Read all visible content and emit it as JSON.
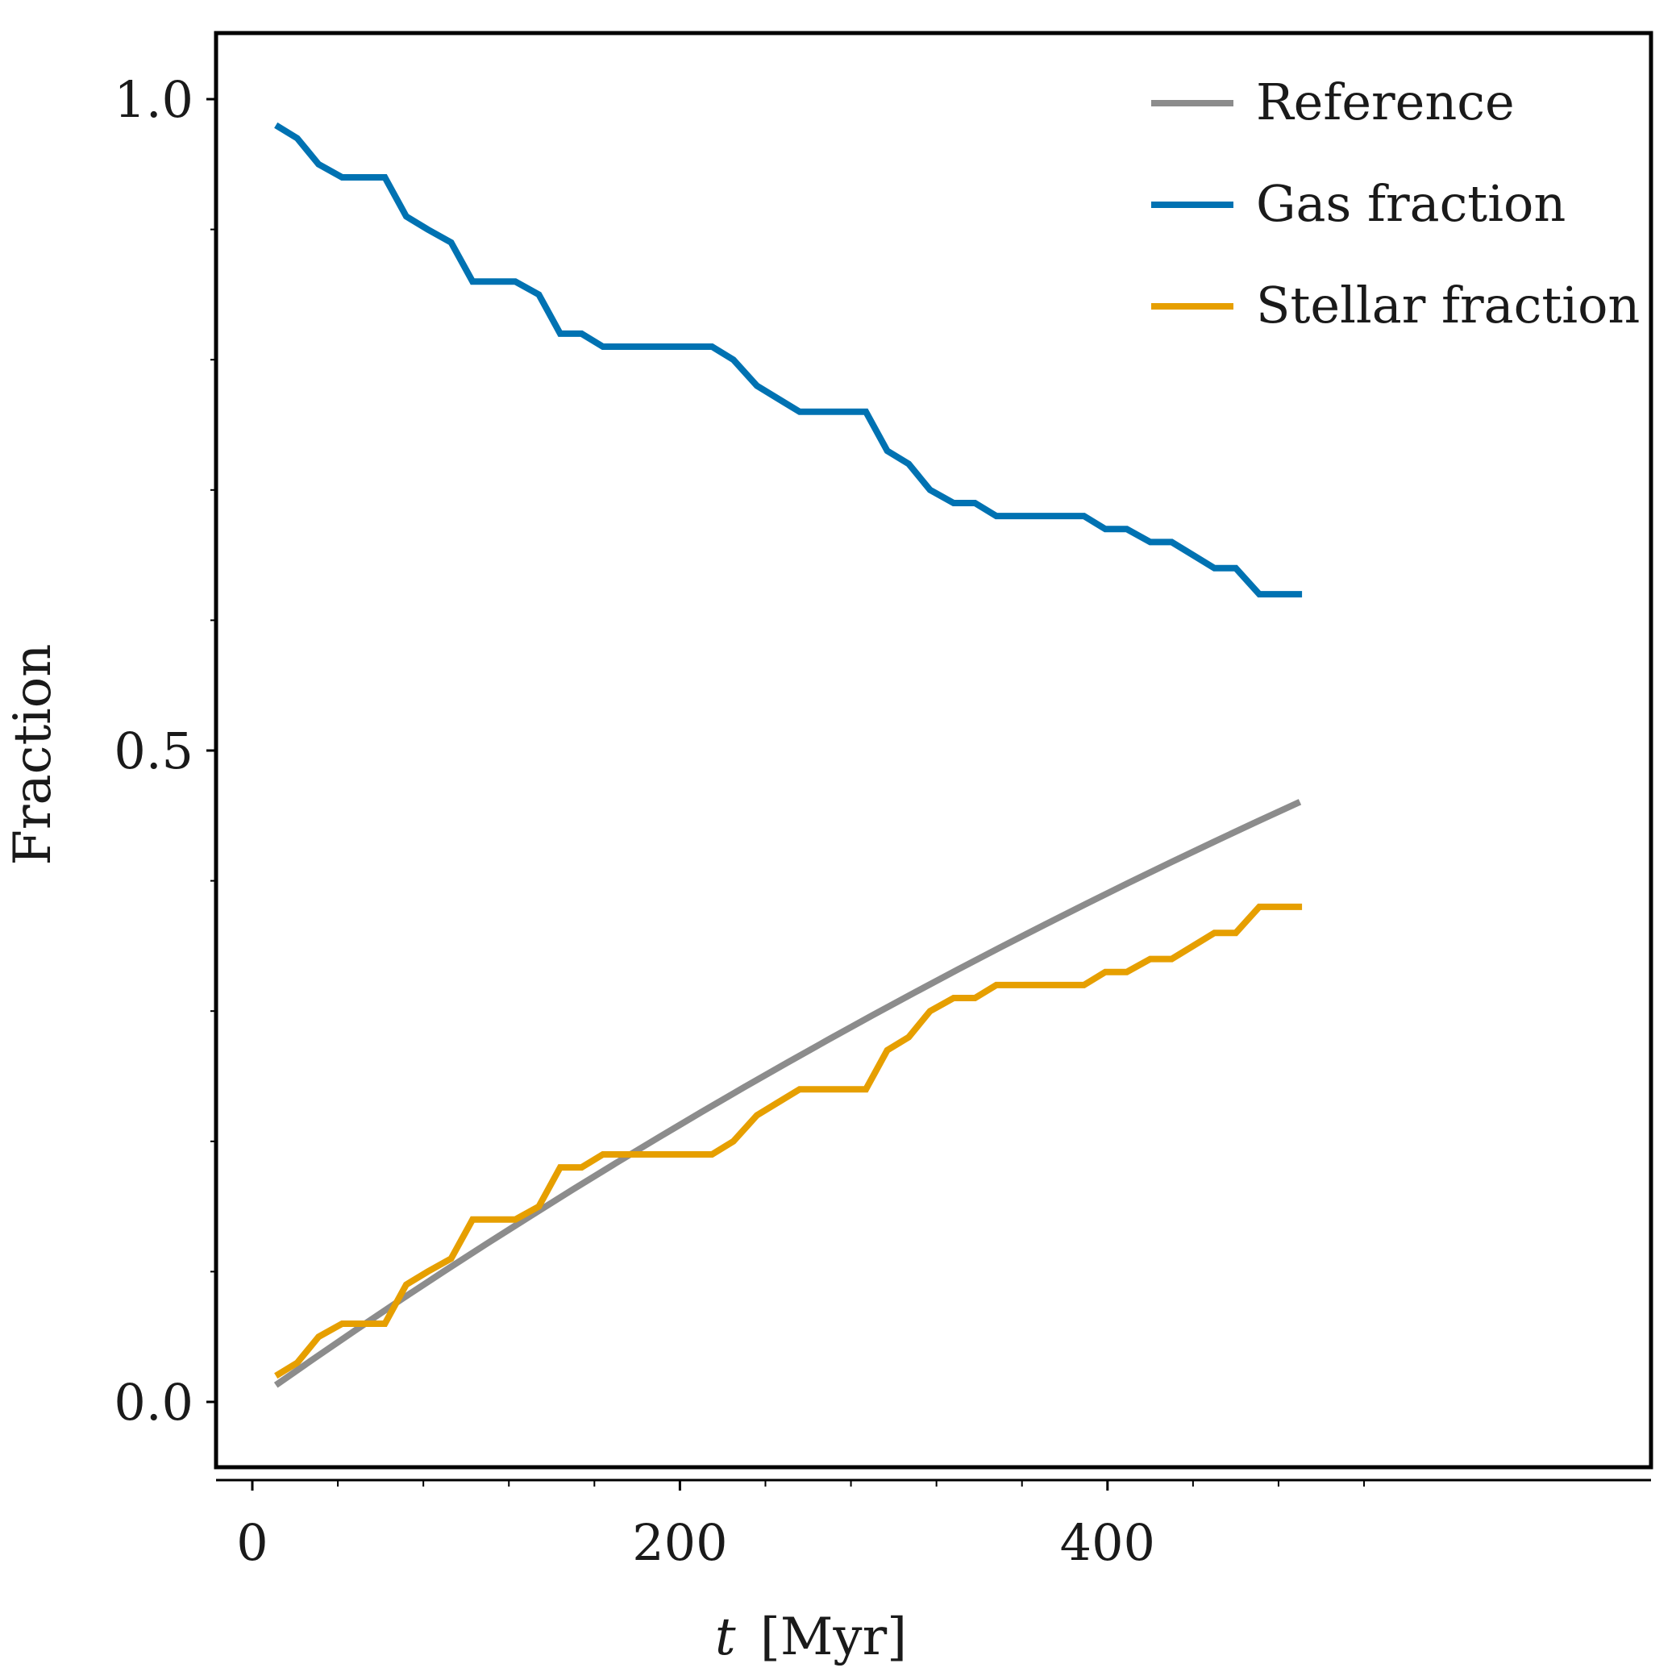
{
  "chart_data": {
    "type": "line",
    "xlabel": "t [Myr]",
    "xlabel_parts": {
      "var": "t",
      "unit": "[Myr]"
    },
    "ylabel": "Fraction",
    "xlim": [
      -13,
      522
    ],
    "ylim": [
      -0.045,
      1.05
    ],
    "x_ticks": [
      0,
      200,
      400
    ],
    "x_tick_labels": [
      "0",
      "200",
      "400"
    ],
    "x_minor_ticks": [
      40,
      80,
      120,
      160,
      240,
      280,
      320,
      360,
      440,
      480,
      520
    ],
    "y_ticks": [
      0.0,
      0.5,
      1.0
    ],
    "y_tick_labels": [
      "0.0",
      "0.5",
      "1.0"
    ],
    "y_minor_ticks": [
      0.1,
      0.2,
      0.3,
      0.4,
      0.6,
      0.7,
      0.8,
      0.9
    ],
    "grid": false,
    "legend_position": "top-right",
    "series": [
      {
        "name": "Reference",
        "color": "#8c8c8c",
        "x": [
          11,
          30,
          50,
          70,
          90,
          110,
          130,
          150,
          170,
          190,
          210,
          230,
          250,
          270,
          290,
          310,
          330,
          350,
          370,
          390,
          410,
          430,
          450,
          470,
          490
        ],
        "y": [
          0.0129,
          0.0346,
          0.057,
          0.079,
          0.1006,
          0.1218,
          0.1426,
          0.1631,
          0.1832,
          0.203,
          0.2224,
          0.2415,
          0.2602,
          0.2786,
          0.2967,
          0.3144,
          0.3319,
          0.349,
          0.3658,
          0.3823,
          0.3986,
          0.4145,
          0.4301,
          0.4455,
          0.4606
        ]
      },
      {
        "name": "Gas fraction",
        "color": "#0072b2",
        "x": [
          11,
          21,
          31,
          42,
          52,
          62,
          72,
          82,
          93,
          103,
          113,
          123,
          134,
          144,
          154,
          164,
          174,
          185,
          195,
          205,
          215,
          225,
          236,
          246,
          256,
          266,
          277,
          287,
          297,
          307,
          317,
          328,
          338,
          348,
          358,
          368,
          379,
          389,
          399,
          409,
          420,
          430,
          440,
          450,
          460,
          471,
          481,
          491
        ],
        "y": [
          0.98,
          0.97,
          0.95,
          0.94,
          0.94,
          0.94,
          0.91,
          0.9,
          0.89,
          0.86,
          0.86,
          0.86,
          0.85,
          0.82,
          0.82,
          0.81,
          0.81,
          0.81,
          0.81,
          0.81,
          0.81,
          0.8,
          0.78,
          0.77,
          0.76,
          0.76,
          0.76,
          0.76,
          0.73,
          0.72,
          0.7,
          0.69,
          0.69,
          0.68,
          0.68,
          0.68,
          0.68,
          0.68,
          0.67,
          0.67,
          0.66,
          0.66,
          0.65,
          0.64,
          0.64,
          0.62,
          0.62,
          0.62
        ]
      },
      {
        "name": "Stellar fraction",
        "color": "#e69f00",
        "x": [
          11,
          21,
          31,
          42,
          52,
          62,
          72,
          82,
          93,
          103,
          113,
          123,
          134,
          144,
          154,
          164,
          174,
          185,
          195,
          205,
          215,
          225,
          236,
          246,
          256,
          266,
          277,
          287,
          297,
          307,
          317,
          328,
          338,
          348,
          358,
          368,
          379,
          389,
          399,
          409,
          420,
          430,
          440,
          450,
          460,
          471,
          481,
          491
        ],
        "y": [
          0.02,
          0.03,
          0.05,
          0.06,
          0.06,
          0.06,
          0.09,
          0.1,
          0.11,
          0.14,
          0.14,
          0.14,
          0.15,
          0.18,
          0.18,
          0.19,
          0.19,
          0.19,
          0.19,
          0.19,
          0.19,
          0.2,
          0.22,
          0.23,
          0.24,
          0.24,
          0.24,
          0.24,
          0.27,
          0.28,
          0.3,
          0.31,
          0.31,
          0.32,
          0.32,
          0.32,
          0.32,
          0.32,
          0.33,
          0.33,
          0.34,
          0.34,
          0.35,
          0.36,
          0.36,
          0.38,
          0.38,
          0.38
        ]
      }
    ]
  }
}
